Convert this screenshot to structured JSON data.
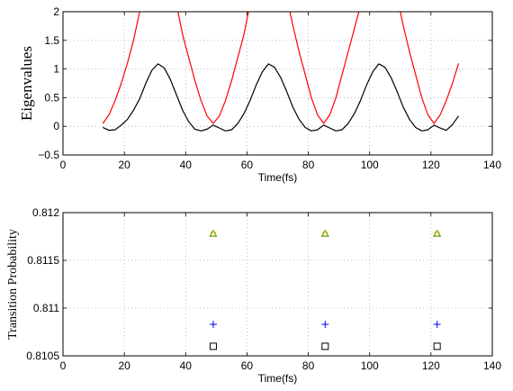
{
  "chart_data": [
    {
      "type": "line",
      "title": "",
      "xlabel": "Time(fs)",
      "ylabel": "Eigenvalues",
      "xlim": [
        0,
        140
      ],
      "ylim": [
        -0.5,
        2
      ],
      "xticks": [
        0,
        20,
        40,
        60,
        80,
        100,
        120,
        140
      ],
      "yticks": [
        -0.5,
        0,
        0.5,
        1,
        1.5,
        2
      ],
      "ytick_labels": [
        "−0.5",
        "0",
        "0.5",
        "1",
        "1.5",
        "2"
      ],
      "grid": true,
      "series": [
        {
          "color": "#000000",
          "points": [
            [
              13,
              -0.02
            ],
            [
              15,
              -0.07
            ],
            [
              17,
              -0.06
            ],
            [
              19,
              0.02
            ],
            [
              21,
              0.12
            ],
            [
              23,
              0.28
            ],
            [
              25,
              0.48
            ],
            [
              27,
              0.75
            ],
            [
              29,
              0.98
            ],
            [
              31,
              1.09
            ],
            [
              33,
              1.02
            ],
            [
              35,
              0.82
            ],
            [
              37,
              0.55
            ],
            [
              39,
              0.28
            ],
            [
              41,
              0.08
            ],
            [
              43,
              -0.05
            ],
            [
              45,
              -0.08
            ],
            [
              47,
              -0.05
            ],
            [
              49,
              0.02
            ],
            [
              51,
              -0.03
            ],
            [
              53,
              -0.08
            ],
            [
              55,
              -0.06
            ],
            [
              57,
              0.05
            ],
            [
              59,
              0.22
            ],
            [
              61,
              0.45
            ],
            [
              63,
              0.72
            ],
            [
              65,
              0.95
            ],
            [
              67,
              1.09
            ],
            [
              69,
              1.03
            ],
            [
              71,
              0.85
            ],
            [
              73,
              0.6
            ],
            [
              75,
              0.33
            ],
            [
              77,
              0.12
            ],
            [
              79,
              -0.02
            ],
            [
              81,
              -0.08
            ],
            [
              83,
              -0.06
            ],
            [
              85,
              0.02
            ],
            [
              87,
              -0.03
            ],
            [
              89,
              -0.08
            ],
            [
              91,
              -0.06
            ],
            [
              93,
              0.05
            ],
            [
              95,
              0.22
            ],
            [
              97,
              0.45
            ],
            [
              99,
              0.72
            ],
            [
              101,
              0.95
            ],
            [
              103,
              1.09
            ],
            [
              105,
              1.03
            ],
            [
              107,
              0.85
            ],
            [
              109,
              0.6
            ],
            [
              111,
              0.33
            ],
            [
              113,
              0.12
            ],
            [
              115,
              -0.02
            ],
            [
              117,
              -0.08
            ],
            [
              119,
              -0.06
            ],
            [
              121,
              0.02
            ],
            [
              123,
              -0.03
            ],
            [
              125,
              -0.07
            ],
            [
              127,
              0.03
            ],
            [
              129,
              0.18
            ]
          ]
        },
        {
          "color": "#ff0000",
          "points": [
            [
              13,
              0.05
            ],
            [
              15,
              0.2
            ],
            [
              17,
              0.45
            ],
            [
              19,
              0.75
            ],
            [
              21,
              1.1
            ],
            [
              23,
              1.5
            ],
            [
              24,
              1.75
            ],
            [
              25,
              2.0
            ],
            null,
            [
              37.5,
              2.0
            ],
            [
              39,
              1.6
            ],
            [
              41,
              1.2
            ],
            [
              43,
              0.8
            ],
            [
              45,
              0.45
            ],
            [
              47,
              0.18
            ],
            [
              49,
              0.05
            ],
            [
              51,
              0.18
            ],
            [
              53,
              0.45
            ],
            [
              55,
              0.8
            ],
            [
              57,
              1.2
            ],
            [
              59,
              1.6
            ],
            [
              60.5,
              2.0
            ],
            null,
            [
              74,
              2.0
            ],
            [
              75,
              1.75
            ],
            [
              77,
              1.3
            ],
            [
              79,
              0.9
            ],
            [
              81,
              0.5
            ],
            [
              83,
              0.2
            ],
            [
              85,
              0.05
            ],
            [
              87,
              0.2
            ],
            [
              89,
              0.5
            ],
            [
              91,
              0.9
            ],
            [
              93,
              1.3
            ],
            [
              95,
              1.7
            ],
            [
              96.5,
              2.0
            ],
            null,
            [
              110,
              2.0
            ],
            [
              111,
              1.75
            ],
            [
              113,
              1.3
            ],
            [
              115,
              0.9
            ],
            [
              117,
              0.5
            ],
            [
              119,
              0.2
            ],
            [
              121,
              0.05
            ],
            [
              123,
              0.2
            ],
            [
              125,
              0.45
            ],
            [
              127,
              0.75
            ],
            [
              129,
              1.1
            ]
          ]
        }
      ]
    },
    {
      "type": "scatter",
      "title": "",
      "xlabel": "Time(fs)",
      "ylabel": "Transition Probability",
      "xlim": [
        0,
        140
      ],
      "ylim": [
        0.8105,
        0.812
      ],
      "xticks": [
        0,
        20,
        40,
        60,
        80,
        100,
        120,
        140
      ],
      "yticks": [
        0.8105,
        0.811,
        0.8115,
        0.812
      ],
      "ytick_labels": [
        "0.8105",
        "0.811",
        "0.8115",
        "0.812"
      ],
      "grid": true,
      "series": [
        {
          "marker": "triangle",
          "color": "#2ca02c",
          "x": [
            49,
            85.5,
            122
          ],
          "y": [
            0.81178,
            0.81178,
            0.81178
          ]
        },
        {
          "marker": "circle",
          "color": "#e8b400",
          "x": [
            49,
            85.5,
            122
          ],
          "y": [
            0.81178,
            0.81178,
            0.81178
          ]
        },
        {
          "marker": "plus",
          "color": "#0000ff",
          "x": [
            49,
            85.5,
            122
          ],
          "y": [
            0.81083,
            0.81083,
            0.81083
          ]
        },
        {
          "marker": "square",
          "color": "#000000",
          "x": [
            49,
            85.5,
            122
          ],
          "y": [
            0.8106,
            0.8106,
            0.8106
          ]
        }
      ]
    }
  ]
}
